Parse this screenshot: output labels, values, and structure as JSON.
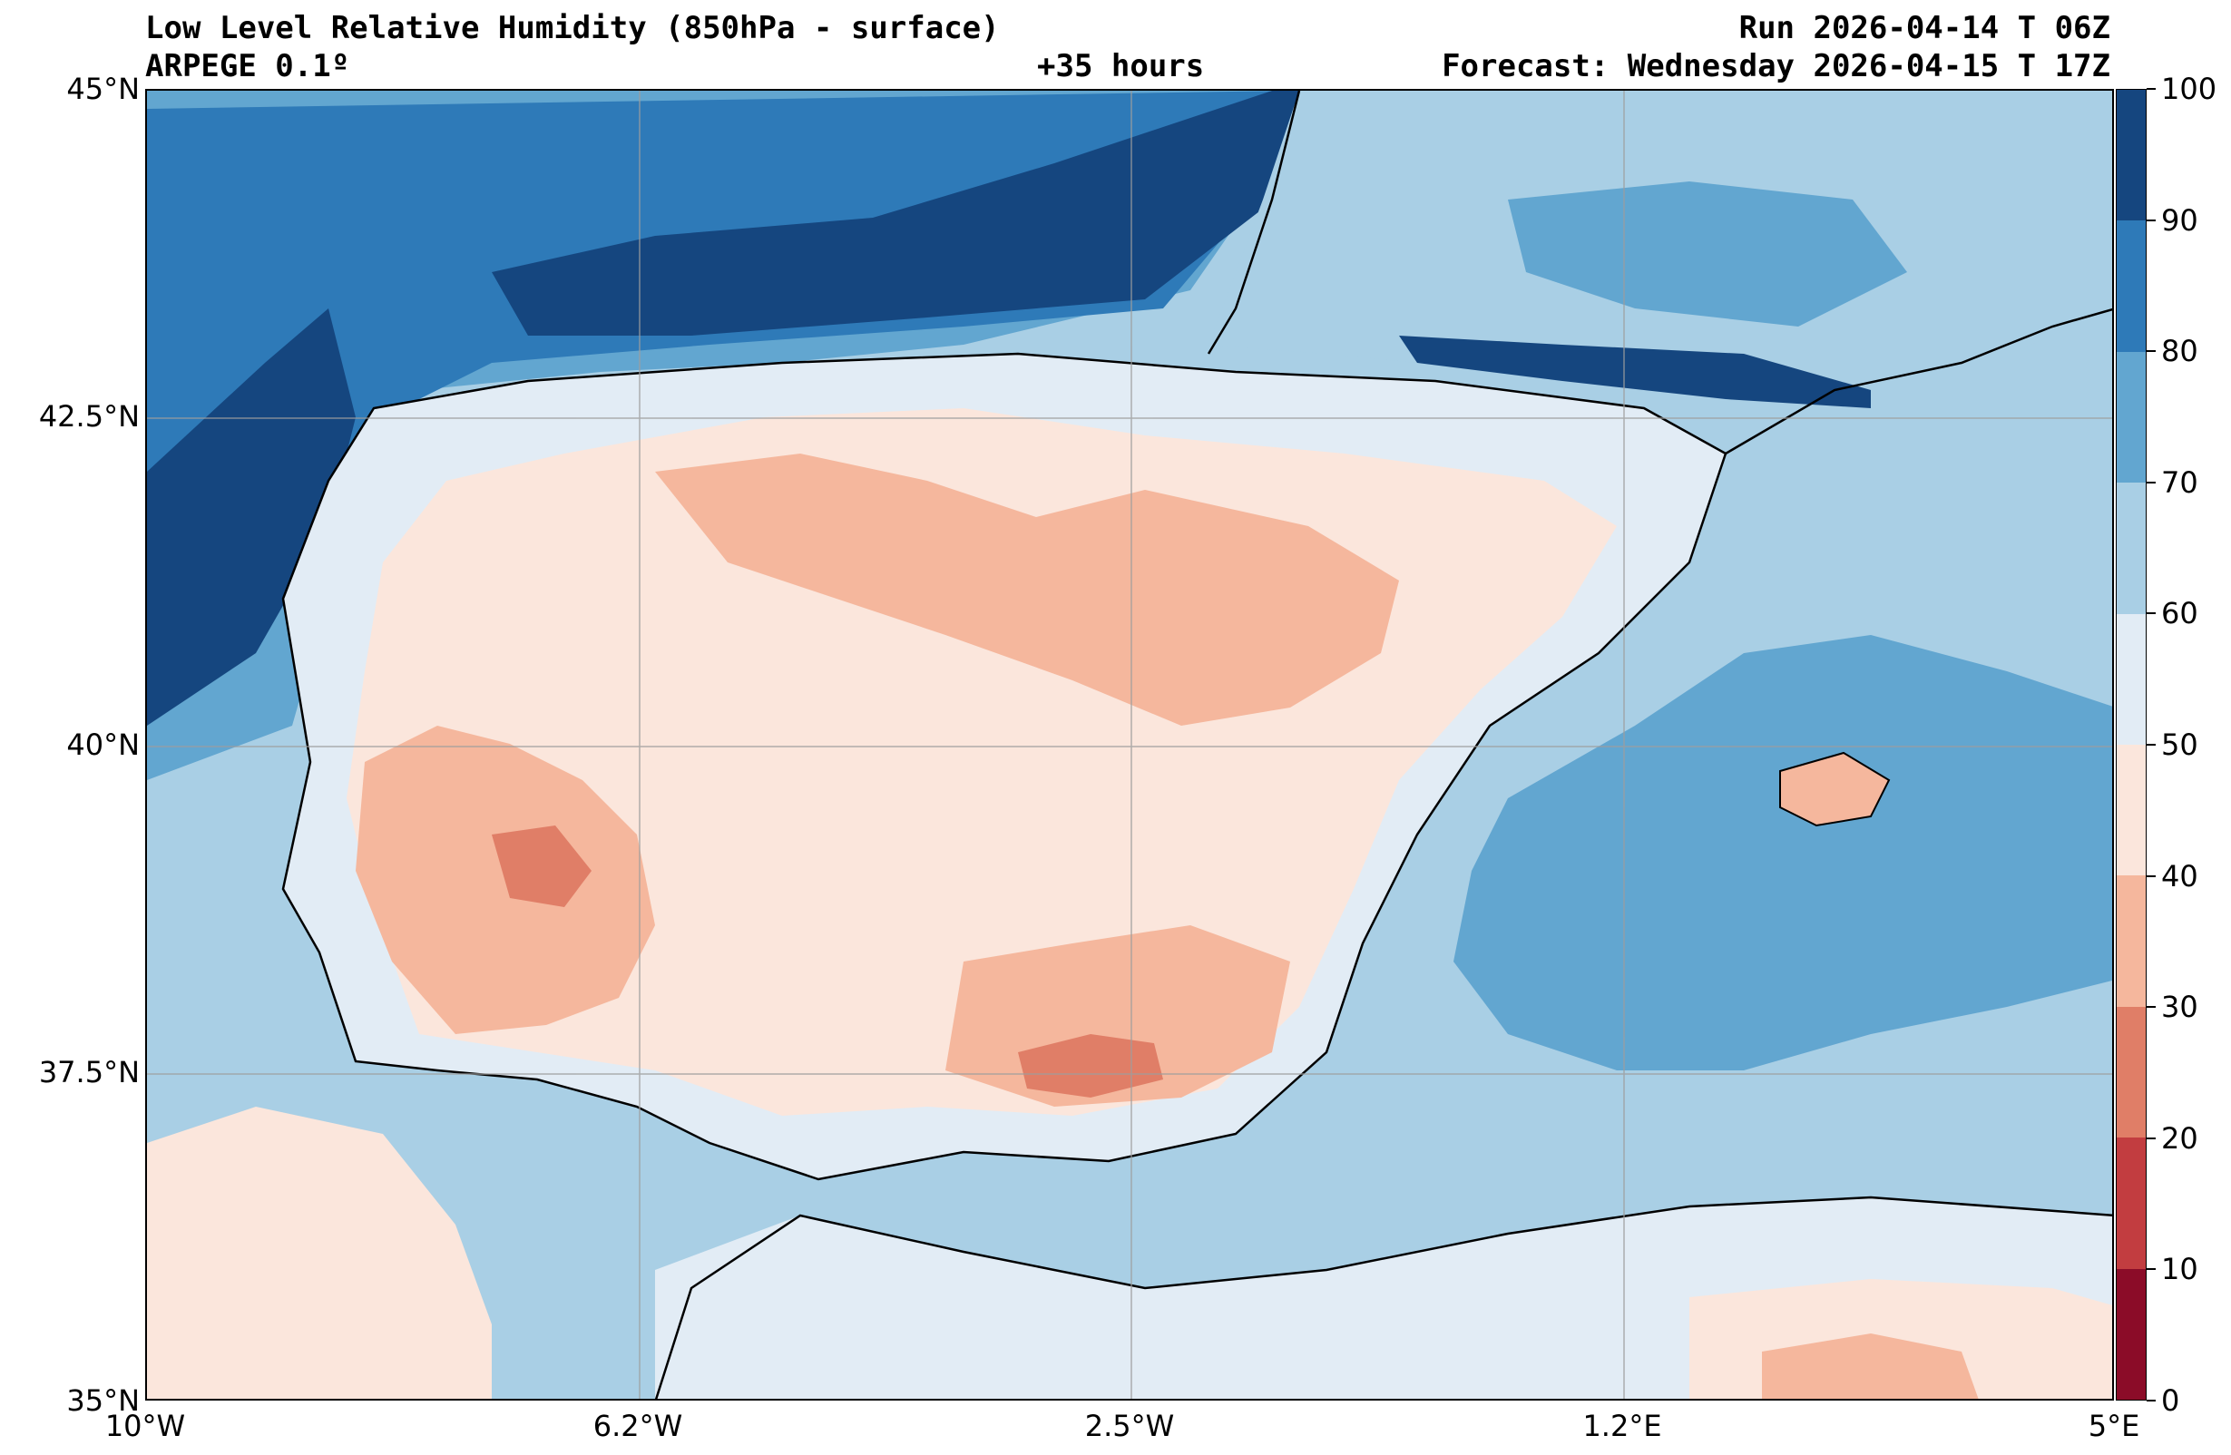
{
  "header": {
    "title": "Low Level Relative Humidity (850hPa - surface)",
    "model": "ARPEGE 0.1º",
    "lead": "+35 hours",
    "run": "Run 2026-04-14 T 06Z",
    "forecast": "Forecast: Wednesday 2026-04-15 T 17Z"
  },
  "axes": {
    "x_ticks": [
      "10°W",
      "6.2°W",
      "2.5°W",
      "1.2°E",
      "5°E"
    ],
    "y_ticks": [
      "45°N",
      "42.5°N",
      "40°N",
      "37.5°N",
      "35°N"
    ],
    "lon_range": [
      -10,
      5
    ],
    "lat_range": [
      35,
      45
    ]
  },
  "colorbar": {
    "labels": [
      "100",
      "90",
      "80",
      "70",
      "60",
      "50",
      "40",
      "30",
      "20",
      "10",
      "0"
    ],
    "colors_top_to_bottom": [
      "#15467f",
      "#2e7ab8",
      "#62a6d0",
      "#a9cfe5",
      "#e2ecf5",
      "#fbe6dc",
      "#f5b79d",
      "#e07e67",
      "#c23d40",
      "#8b0c28"
    ]
  },
  "palette": {
    "rh_90_100": "#15467f",
    "rh_80_90": "#2e7ab8",
    "rh_70_80": "#62a6d0",
    "rh_60_70": "#a9cfe5",
    "rh_50_60": "#e2ecf5",
    "rh_40_50": "#fbe6dc",
    "rh_30_40": "#f5b79d",
    "rh_20_30": "#e07e67"
  }
}
